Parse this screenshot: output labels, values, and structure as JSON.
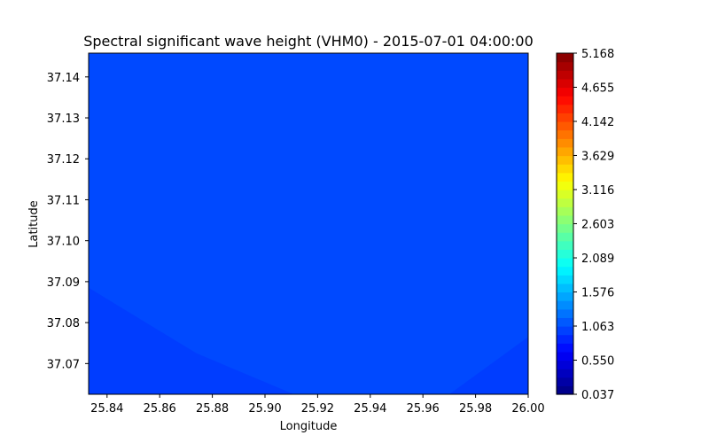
{
  "chart_data": {
    "type": "heatmap",
    "title": "Spectral significant wave height (VHM0) - 2015-07-01 04:00:00",
    "xlabel": "Longitude",
    "ylabel": "Latitude",
    "xlim": [
      25.833,
      26.0
    ],
    "ylim": [
      37.0625,
      37.1458
    ],
    "x_ticks": [
      "25.84",
      "25.86",
      "25.88",
      "25.90",
      "25.92",
      "25.94",
      "25.96",
      "25.98",
      "26.00"
    ],
    "x_tick_values": [
      25.84,
      25.86,
      25.88,
      25.9,
      25.92,
      25.94,
      25.96,
      25.98,
      26.0
    ],
    "y_ticks": [
      "37.07",
      "37.08",
      "37.09",
      "37.10",
      "37.11",
      "37.12",
      "37.13",
      "37.14"
    ],
    "y_tick_values": [
      37.07,
      37.08,
      37.09,
      37.1,
      37.11,
      37.12,
      37.13,
      37.14
    ],
    "colorbar": {
      "min": 0.037,
      "max": 5.168,
      "colormap": "jet",
      "levels": 40,
      "tick_labels": [
        "0.037",
        "0.550",
        "1.063",
        "1.576",
        "2.089",
        "2.603",
        "3.116",
        "3.629",
        "4.142",
        "4.655",
        "5.168"
      ],
      "tick_values": [
        0.037,
        0.55,
        1.063,
        1.576,
        2.089,
        2.603,
        3.116,
        3.629,
        4.142,
        4.655,
        5.168
      ]
    },
    "fields": [
      {
        "value_range": [
          0.9,
          1.03
        ],
        "color": "#0049ff",
        "region_lonlat": [
          [
            25.833,
            37.0625
          ],
          [
            26.0,
            37.0625
          ],
          [
            26.0,
            37.1458
          ],
          [
            25.833,
            37.1458
          ]
        ]
      },
      {
        "value_range": [
          0.78,
          0.9
        ],
        "color": "#003dff",
        "region_lonlat": [
          [
            25.833,
            37.0625
          ],
          [
            25.833,
            37.0885
          ],
          [
            25.874,
            37.0725
          ],
          [
            25.911,
            37.0625
          ]
        ]
      },
      {
        "value_range": [
          0.78,
          0.9
        ],
        "color": "#003dff",
        "region_lonlat": [
          [
            25.97,
            37.0625
          ],
          [
            26.0,
            37.0625
          ],
          [
            26.0,
            37.0765
          ]
        ]
      }
    ]
  }
}
